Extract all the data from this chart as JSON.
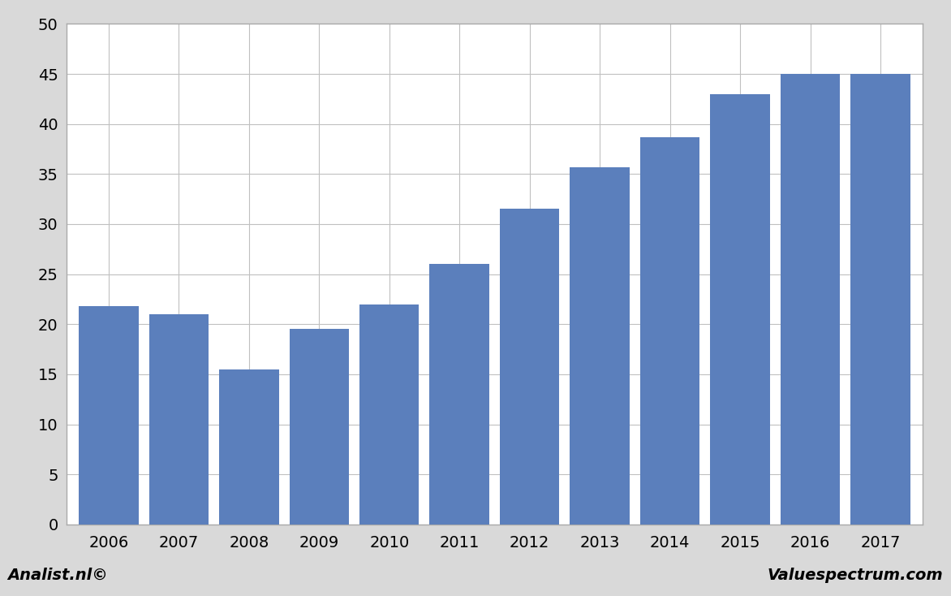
{
  "categories": [
    "2006",
    "2007",
    "2008",
    "2009",
    "2010",
    "2011",
    "2012",
    "2013",
    "2014",
    "2015",
    "2016",
    "2017"
  ],
  "values": [
    21.8,
    21.0,
    15.5,
    19.5,
    22.0,
    26.0,
    31.5,
    35.7,
    38.7,
    43.0,
    45.0,
    45.0
  ],
  "bar_color": "#5b7fbc",
  "ylim": [
    0,
    50
  ],
  "yticks": [
    0,
    5,
    10,
    15,
    20,
    25,
    30,
    35,
    40,
    45,
    50
  ],
  "background_color": "#d9d9d9",
  "plot_background": "#ffffff",
  "grid_color": "#c0c0c0",
  "border_color": "#aaaaaa",
  "footer_left": "Analist.nl©",
  "footer_right": "Valuespectrum.com",
  "footer_fontsize": 14,
  "bar_width": 0.85
}
